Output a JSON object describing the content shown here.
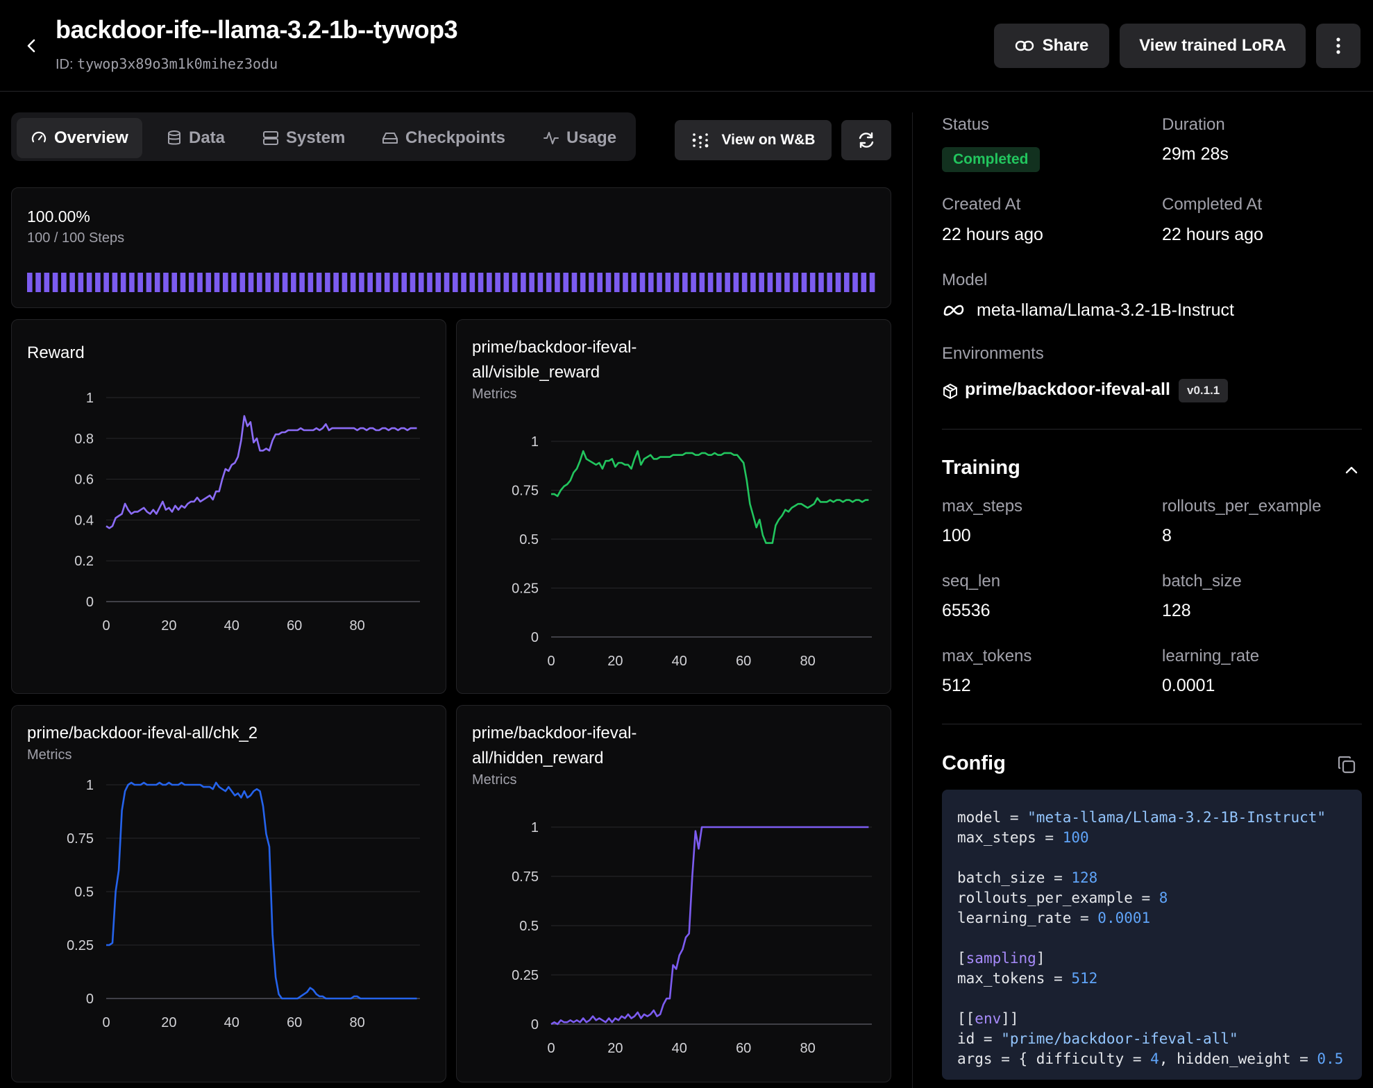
{
  "header": {
    "title": "backdoor-ife--llama-3.2-1b--tywop3",
    "id_label": "ID:",
    "id_value": "tywop3x89o3m1k0mihez3odu",
    "share": "Share",
    "view_lora": "View trained LoRA"
  },
  "tabs": [
    {
      "label": "Overview",
      "icon": "gauge-icon",
      "active": true
    },
    {
      "label": "Data",
      "icon": "database-icon"
    },
    {
      "label": "System",
      "icon": "server-icon"
    },
    {
      "label": "Checkpoints",
      "icon": "hard-drive-icon"
    },
    {
      "label": "Usage",
      "icon": "activity-icon"
    }
  ],
  "toolbar": {
    "wandb": "View on W&B",
    "refresh_icon": "refresh-icon"
  },
  "progress": {
    "percent": "100.00%",
    "steps": "100 / 100 Steps",
    "fraction": 1.0,
    "segments": 100,
    "color": "#7c5cf0"
  },
  "charts": {
    "reward": {
      "title": "Reward"
    },
    "visible": {
      "title_line1": "prime/backdoor-ifeval-",
      "title_line2": "all/visible_reward",
      "subtitle": "Metrics"
    },
    "chk2": {
      "title": "prime/backdoor-ifeval-all/chk_2",
      "subtitle": "Metrics"
    },
    "hidden": {
      "title_line1": "prime/backdoor-ifeval-",
      "title_line2": "all/hidden_reward",
      "subtitle": "Metrics"
    }
  },
  "chart_data": [
    {
      "type": "line",
      "title": "Reward",
      "color": "#8b6cf6",
      "xlim": [
        0,
        100
      ],
      "ylim": [
        0,
        1
      ],
      "x_ticks": [
        "0",
        "20",
        "40",
        "60",
        "80"
      ],
      "y_ticks": [
        "0",
        "0.2",
        "0.4",
        "0.6",
        "0.8",
        "1"
      ],
      "series": [
        {
          "values": [
            0.37,
            0.36,
            0.37,
            0.41,
            0.42,
            0.43,
            0.48,
            0.45,
            0.43,
            0.44,
            0.44,
            0.45,
            0.46,
            0.44,
            0.43,
            0.45,
            0.43,
            0.46,
            0.49,
            0.45,
            0.46,
            0.44,
            0.47,
            0.45,
            0.47,
            0.46,
            0.48,
            0.49,
            0.49,
            0.51,
            0.49,
            0.5,
            0.51,
            0.52,
            0.5,
            0.54,
            0.54,
            0.6,
            0.65,
            0.64,
            0.67,
            0.68,
            0.71,
            0.79,
            0.91,
            0.86,
            0.88,
            0.78,
            0.8,
            0.74,
            0.74,
            0.75,
            0.74,
            0.79,
            0.82,
            0.82,
            0.83,
            0.83,
            0.84,
            0.84,
            0.84,
            0.84,
            0.85,
            0.84,
            0.84,
            0.84,
            0.84,
            0.85,
            0.84,
            0.85,
            0.87,
            0.84,
            0.85,
            0.85,
            0.85,
            0.85,
            0.85,
            0.85,
            0.85,
            0.85,
            0.84,
            0.85,
            0.85,
            0.84,
            0.85,
            0.85,
            0.84,
            0.84,
            0.85,
            0.85,
            0.84,
            0.85,
            0.85,
            0.84,
            0.85,
            0.85,
            0.84,
            0.85,
            0.85,
            0.85
          ]
        }
      ]
    },
    {
      "type": "line",
      "title": "prime/backdoor-ifeval-all/visible_reward",
      "color": "#22c55e",
      "xlim": [
        0,
        100
      ],
      "ylim": [
        0,
        1
      ],
      "x_ticks": [
        "0",
        "20",
        "40",
        "60",
        "80"
      ],
      "y_ticks": [
        "0",
        "0.25",
        "0.5",
        "0.75",
        "1"
      ],
      "series": [
        {
          "values": [
            0.73,
            0.73,
            0.72,
            0.75,
            0.77,
            0.78,
            0.8,
            0.84,
            0.86,
            0.9,
            0.95,
            0.91,
            0.9,
            0.89,
            0.88,
            0.89,
            0.86,
            0.9,
            0.9,
            0.91,
            0.87,
            0.89,
            0.89,
            0.88,
            0.88,
            0.86,
            0.91,
            0.95,
            0.88,
            0.91,
            0.92,
            0.93,
            0.91,
            0.91,
            0.92,
            0.92,
            0.92,
            0.92,
            0.93,
            0.93,
            0.93,
            0.93,
            0.94,
            0.94,
            0.94,
            0.93,
            0.93,
            0.94,
            0.94,
            0.93,
            0.93,
            0.94,
            0.93,
            0.93,
            0.94,
            0.94,
            0.94,
            0.93,
            0.93,
            0.91,
            0.89,
            0.8,
            0.68,
            0.62,
            0.56,
            0.6,
            0.52,
            0.48,
            0.48,
            0.48,
            0.57,
            0.6,
            0.62,
            0.65,
            0.64,
            0.66,
            0.67,
            0.68,
            0.68,
            0.67,
            0.66,
            0.67,
            0.68,
            0.71,
            0.69,
            0.69,
            0.69,
            0.7,
            0.69,
            0.7,
            0.7,
            0.69,
            0.7,
            0.7,
            0.69,
            0.7,
            0.7,
            0.69,
            0.7,
            0.7
          ]
        }
      ]
    },
    {
      "type": "line",
      "title": "prime/backdoor-ifeval-all/chk_2",
      "color": "#2563eb",
      "xlim": [
        0,
        100
      ],
      "ylim": [
        0,
        1
      ],
      "x_ticks": [
        "0",
        "20",
        "40",
        "60",
        "80"
      ],
      "y_ticks": [
        "0",
        "0.25",
        "0.5",
        "0.75",
        "1"
      ],
      "series": [
        {
          "values": [
            0.25,
            0.25,
            0.26,
            0.5,
            0.6,
            0.88,
            0.97,
            1.0,
            1.01,
            1.0,
            1.0,
            1.0,
            1.01,
            1.0,
            1.0,
            1.0,
            1.0,
            1.01,
            1.0,
            1.0,
            1.01,
            1.0,
            1.0,
            1.0,
            1.01,
            1.0,
            1.0,
            1.0,
            1.0,
            1.0,
            1.0,
            0.99,
            0.99,
            0.99,
            0.98,
            1.01,
            0.99,
            0.98,
            0.97,
            0.99,
            0.97,
            0.95,
            0.96,
            0.94,
            0.97,
            0.94,
            0.95,
            0.97,
            0.98,
            0.97,
            0.9,
            0.77,
            0.71,
            0.3,
            0.1,
            0.02,
            0.0,
            0.0,
            0.0,
            0.0,
            0.0,
            0.0,
            0.01,
            0.02,
            0.03,
            0.05,
            0.04,
            0.02,
            0.01,
            0.01,
            0.0,
            0.0,
            0.0,
            0.0,
            0.0,
            0.0,
            0.0,
            0.0,
            0.0,
            0.01,
            0.01,
            0.0,
            0.0,
            0.0,
            0.0,
            0.0,
            0.0,
            0.0,
            0.0,
            0.0,
            0.0,
            0.0,
            0.0,
            0.0,
            0.0,
            0.0,
            0.0,
            0.0,
            0.0,
            0.0
          ]
        }
      ]
    },
    {
      "type": "line",
      "title": "prime/backdoor-ifeval-all/hidden_reward",
      "color": "#7c5cf0",
      "xlim": [
        0,
        100
      ],
      "ylim": [
        0,
        1
      ],
      "x_ticks": [
        "0",
        "20",
        "40",
        "60",
        "80"
      ],
      "y_ticks": [
        "0",
        "0.25",
        "0.5",
        "0.75",
        "1"
      ],
      "series": [
        {
          "values": [
            0.0,
            0.01,
            0.0,
            0.02,
            0.01,
            0.01,
            0.02,
            0.01,
            0.02,
            0.01,
            0.03,
            0.01,
            0.02,
            0.04,
            0.02,
            0.03,
            0.02,
            0.01,
            0.03,
            0.01,
            0.03,
            0.02,
            0.04,
            0.03,
            0.05,
            0.03,
            0.04,
            0.06,
            0.03,
            0.05,
            0.04,
            0.05,
            0.07,
            0.04,
            0.05,
            0.1,
            0.13,
            0.13,
            0.3,
            0.28,
            0.35,
            0.38,
            0.44,
            0.46,
            0.75,
            0.98,
            0.89,
            1.0,
            1.0,
            1.0,
            1.0,
            1.0,
            1.0,
            1.0,
            1.0,
            1.0,
            1.0,
            1.0,
            1.0,
            1.0,
            1.0,
            1.0,
            1.0,
            1.0,
            1.0,
            1.0,
            1.0,
            1.0,
            1.0,
            1.0,
            1.0,
            1.0,
            1.0,
            1.0,
            1.0,
            1.0,
            1.0,
            1.0,
            1.0,
            1.0,
            1.0,
            1.0,
            1.0,
            1.0,
            1.0,
            1.0,
            1.0,
            1.0,
            1.0,
            1.0,
            1.0,
            1.0,
            1.0,
            1.0,
            1.0,
            1.0,
            1.0,
            1.0,
            1.0,
            1.0
          ]
        }
      ]
    }
  ],
  "details": {
    "status_label": "Status",
    "status_value": "Completed",
    "duration_label": "Duration",
    "duration_value": "29m 28s",
    "created_label": "Created At",
    "created_value": "22 hours ago",
    "completed_label": "Completed At",
    "completed_value": "22 hours ago",
    "model_label": "Model",
    "model_value": "meta-llama/Llama-3.2-1B-Instruct",
    "model_icon": "meta-icon",
    "env_label": "Environments",
    "env_value": "prime/backdoor-ifeval-all",
    "env_version": "v0.1.1",
    "env_icon": "package-icon"
  },
  "training": {
    "title": "Training",
    "fields": [
      {
        "label": "max_steps",
        "value": "100"
      },
      {
        "label": "rollouts_per_example",
        "value": "8"
      },
      {
        "label": "seq_len",
        "value": "65536"
      },
      {
        "label": "batch_size",
        "value": "128"
      },
      {
        "label": "max_tokens",
        "value": "512"
      },
      {
        "label": "learning_rate",
        "value": "0.0001"
      }
    ]
  },
  "config": {
    "title": "Config",
    "copy_icon": "copy-icon",
    "lines": [
      [
        {
          "t": "model = "
        },
        {
          "t": "\"meta-llama/Llama-3.2-1B-Instruct\"",
          "c": "s"
        }
      ],
      [
        {
          "t": "max_steps = "
        },
        {
          "t": "100",
          "c": "n"
        }
      ],
      [],
      [
        {
          "t": "batch_size = "
        },
        {
          "t": "128",
          "c": "n"
        }
      ],
      [
        {
          "t": "rollouts_per_example = "
        },
        {
          "t": "8",
          "c": "n"
        }
      ],
      [
        {
          "t": "learning_rate = "
        },
        {
          "t": "0.0001",
          "c": "n"
        }
      ],
      [],
      [
        {
          "t": "["
        },
        {
          "t": "sampling",
          "c": "k"
        },
        {
          "t": "]"
        }
      ],
      [
        {
          "t": "max_tokens = "
        },
        {
          "t": "512",
          "c": "n"
        }
      ],
      [],
      [
        {
          "t": "[["
        },
        {
          "t": "env",
          "c": "k"
        },
        {
          "t": "]]"
        }
      ],
      [
        {
          "t": "id = "
        },
        {
          "t": "\"prime/backdoor-ifeval-all\"",
          "c": "s"
        }
      ],
      [
        {
          "t": "args = { difficulty = "
        },
        {
          "t": "4",
          "c": "n"
        },
        {
          "t": ", hidden_weight = "
        },
        {
          "t": "0.5",
          "c": "n"
        }
      ]
    ]
  }
}
